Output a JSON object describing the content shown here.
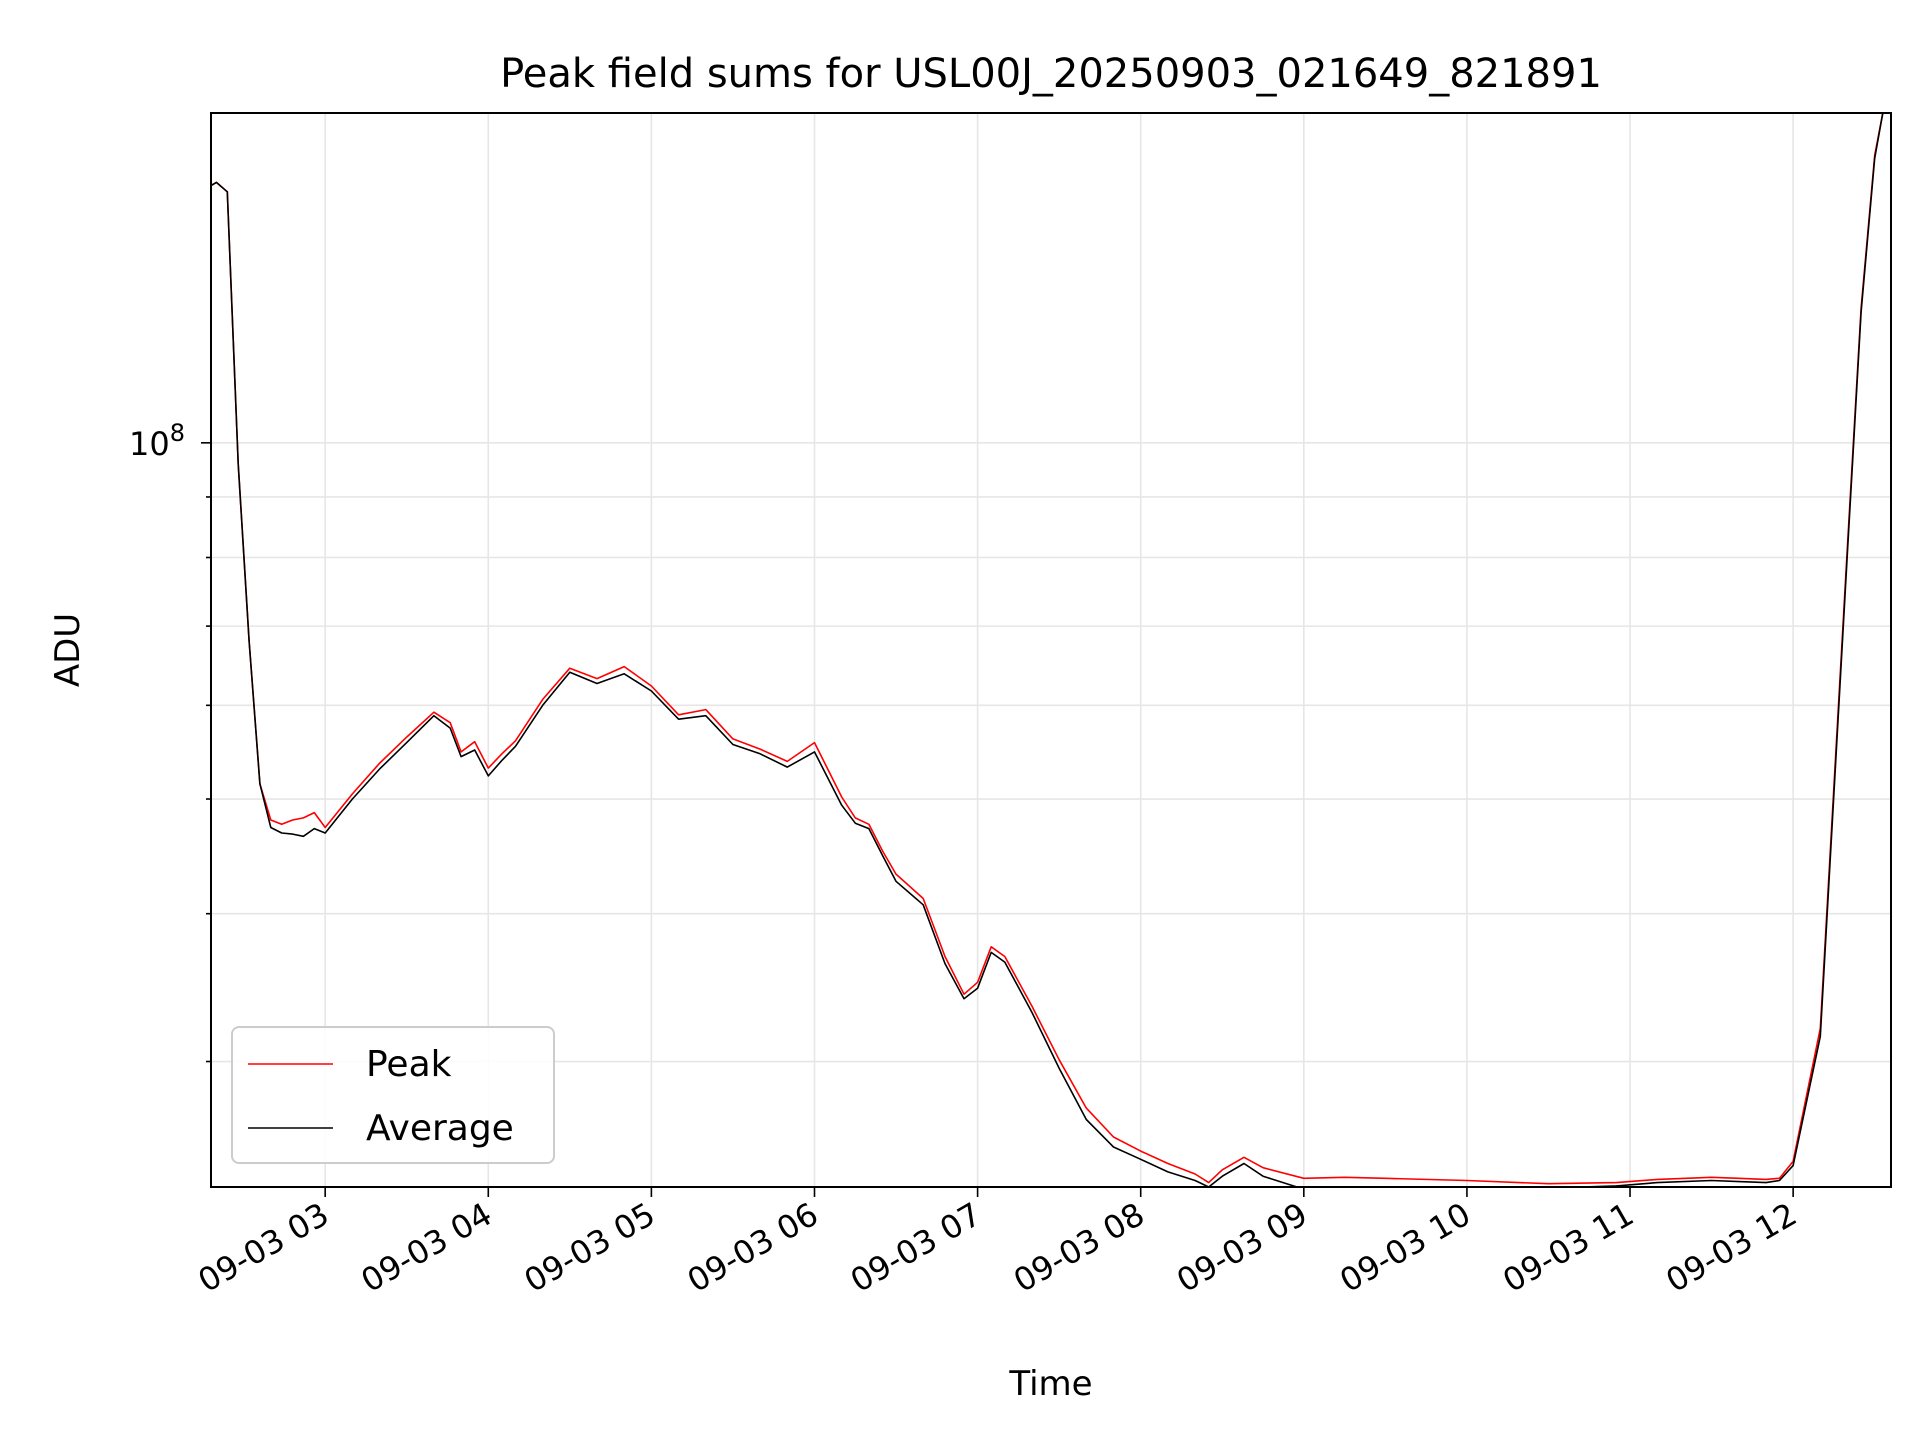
{
  "chart_data": {
    "type": "line",
    "title": "Peak field sums for USL00J_20250903_021649_821891",
    "xlabel": "Time",
    "ylabel": "ADU",
    "y_scale": "log",
    "ylim": [
      23500000,
      190000000
    ],
    "xlim": [
      "2025-09-03 02:18",
      "2025-09-03 12:36"
    ],
    "x_ticks": [
      "09-03 03",
      "09-03 04",
      "09-03 05",
      "09-03 06",
      "09-03 07",
      "09-03 08",
      "09-03 09",
      "09-03 10",
      "09-03 11",
      "09-03 12"
    ],
    "y_ticks": [
      {
        "value": 100000000,
        "label": "10",
        "exponent": "8"
      }
    ],
    "grid": true,
    "legend_position": "lower-left",
    "x": [
      "2025-09-03 02:18",
      "2025-09-03 02:20",
      "2025-09-03 02:24",
      "2025-09-03 02:28",
      "2025-09-03 02:32",
      "2025-09-03 02:36",
      "2025-09-03 02:40",
      "2025-09-03 02:44",
      "2025-09-03 02:48",
      "2025-09-03 02:52",
      "2025-09-03 02:56",
      "2025-09-03 03:00",
      "2025-09-03 03:10",
      "2025-09-03 03:20",
      "2025-09-03 03:30",
      "2025-09-03 03:40",
      "2025-09-03 03:46",
      "2025-09-03 03:50",
      "2025-09-03 03:55",
      "2025-09-03 04:00",
      "2025-09-03 04:05",
      "2025-09-03 04:10",
      "2025-09-03 04:20",
      "2025-09-03 04:30",
      "2025-09-03 04:40",
      "2025-09-03 04:50",
      "2025-09-03 05:00",
      "2025-09-03 05:10",
      "2025-09-03 05:20",
      "2025-09-03 05:30",
      "2025-09-03 05:40",
      "2025-09-03 05:50",
      "2025-09-03 06:00",
      "2025-09-03 06:10",
      "2025-09-03 06:15",
      "2025-09-03 06:20",
      "2025-09-03 06:25",
      "2025-09-03 06:30",
      "2025-09-03 06:40",
      "2025-09-03 06:48",
      "2025-09-03 06:55",
      "2025-09-03 07:00",
      "2025-09-03 07:05",
      "2025-09-03 07:10",
      "2025-09-03 07:20",
      "2025-09-03 07:30",
      "2025-09-03 07:40",
      "2025-09-03 07:50",
      "2025-09-03 08:00",
      "2025-09-03 08:10",
      "2025-09-03 08:20",
      "2025-09-03 08:25",
      "2025-09-03 08:30",
      "2025-09-03 08:38",
      "2025-09-03 08:45",
      "2025-09-03 09:00",
      "2025-09-03 09:15",
      "2025-09-03 09:30",
      "2025-09-03 10:00",
      "2025-09-03 10:30",
      "2025-09-03 10:55",
      "2025-09-03 11:10",
      "2025-09-03 11:30",
      "2025-09-03 11:40",
      "2025-09-03 11:50",
      "2025-09-03 11:55",
      "2025-09-03 12:00",
      "2025-09-03 12:10",
      "2025-09-03 12:20",
      "2025-09-03 12:25",
      "2025-09-03 12:30",
      "2025-09-03 12:33"
    ],
    "series": [
      {
        "name": "Peak",
        "color": "#ff0000",
        "values": [
          165000000,
          166000000,
          163000000,
          96000000,
          68000000,
          51500000,
          48000000,
          47600000,
          48000000,
          48200000,
          48700000,
          47300000,
          50500000,
          53600000,
          56400000,
          59200000,
          58000000,
          54800000,
          55900000,
          53100000,
          54600000,
          56000000,
          60700000,
          64500000,
          63200000,
          64700000,
          62300000,
          58900000,
          59500000,
          56200000,
          55100000,
          53800000,
          55800000,
          50200000,
          48200000,
          47600000,
          45200000,
          43200000,
          41200000,
          36800000,
          34200000,
          35000000,
          37500000,
          36800000,
          33400000,
          30100000,
          27400000,
          25900000,
          25200000,
          24600000,
          24100000,
          23700000,
          24300000,
          24900000,
          24400000,
          23900000,
          23950000,
          23900000,
          23800000,
          23650000,
          23700000,
          23850000,
          23950000,
          23900000,
          23850000,
          23900000,
          24700000,
          32000000,
          82000000,
          130000000,
          175000000,
          190000000
        ]
      },
      {
        "name": "Average",
        "color": "#000000",
        "values": [
          165000000,
          166000000,
          163000000,
          96000000,
          68000000,
          51500000,
          47300000,
          46800000,
          46700000,
          46500000,
          47200000,
          46800000,
          50000000,
          53000000,
          55800000,
          58800000,
          57400000,
          54300000,
          55000000,
          52300000,
          53900000,
          55400000,
          60000000,
          64000000,
          62600000,
          63800000,
          61700000,
          58400000,
          58800000,
          55600000,
          54600000,
          53200000,
          54800000,
          49400000,
          47700000,
          47200000,
          44800000,
          42600000,
          40700000,
          36300000,
          33900000,
          34600000,
          37100000,
          36400000,
          33000000,
          29600000,
          26800000,
          25400000,
          24800000,
          24200000,
          23800000,
          23500000,
          24000000,
          24600000,
          24000000,
          23400000,
          23500000,
          23500000,
          23500000,
          23450000,
          23550000,
          23700000,
          23800000,
          23750000,
          23700000,
          23800000,
          24500000,
          31500000,
          81000000,
          129000000,
          174000000,
          190000000
        ]
      }
    ]
  }
}
